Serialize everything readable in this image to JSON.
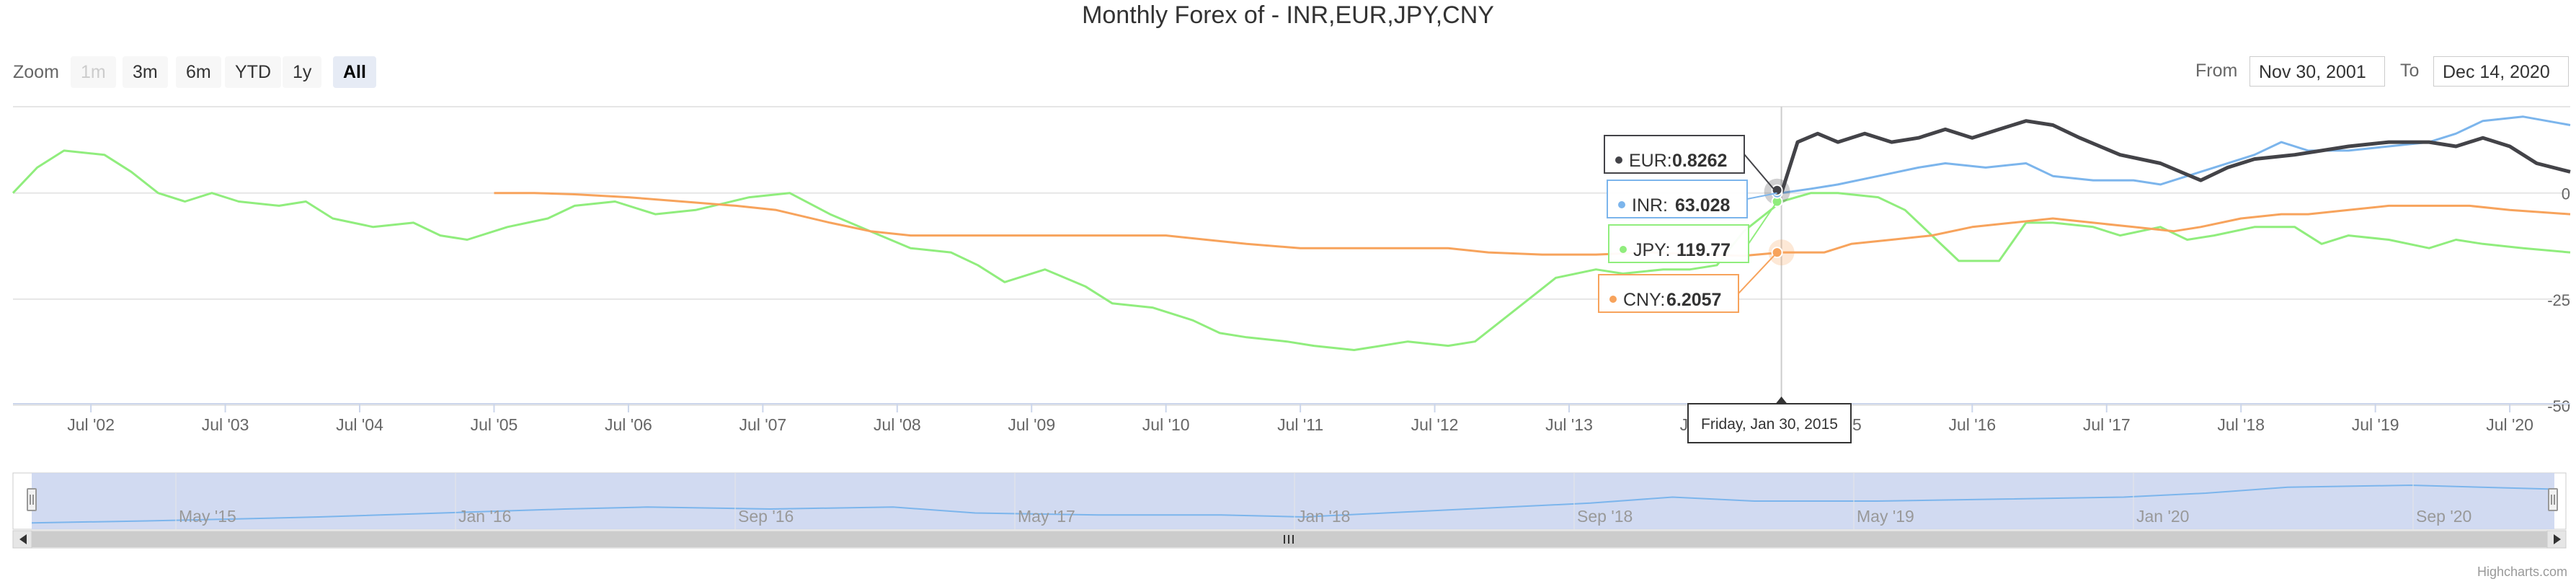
{
  "title": "Monthly Forex of - INR,EUR,JPY,CNY",
  "zoom": {
    "label": "Zoom",
    "buttons": [
      {
        "label": "1m",
        "state": "disabled"
      },
      {
        "label": "3m",
        "state": "normal"
      },
      {
        "label": "6m",
        "state": "normal"
      },
      {
        "label": "YTD",
        "state": "normal"
      },
      {
        "label": "1y",
        "state": "normal"
      },
      {
        "label": "All",
        "state": "active"
      }
    ]
  },
  "range": {
    "from_label": "From",
    "from_value": "Nov 30, 2001",
    "to_label": "To",
    "to_value": "Dec 14, 2020"
  },
  "credits": "Highcharts.com",
  "tooltip": {
    "date": "Friday, Jan 30, 2015",
    "items": [
      {
        "series": "EUR",
        "value": "0.8262"
      },
      {
        "series": "INR",
        "value": "63.028"
      },
      {
        "series": "JPY",
        "value": "119.77"
      },
      {
        "series": "CNY",
        "value": "6.2057"
      }
    ]
  },
  "chart_data": {
    "type": "line",
    "title": "Monthly Forex of - INR,EUR,JPY,CNY",
    "x_ticks": [
      "Jul '02",
      "Jul '03",
      "Jul '04",
      "Jul '05",
      "Jul '06",
      "Jul '07",
      "Jul '08",
      "Jul '09",
      "Jul '10",
      "Jul '11",
      "Jul '12",
      "Jul '13",
      "Jul '14",
      "Jul '15",
      "Jul '16",
      "Jul '17",
      "Jul '18",
      "Jul '19",
      "Jul '20"
    ],
    "y_ticks": [
      "0",
      "-25",
      "-50"
    ],
    "ylim": [
      -50,
      20
    ],
    "xlim": [
      2001.92,
      2020.95
    ],
    "y_axis_position": "right",
    "compare_mode": "percent change from first visible point",
    "grid": true,
    "crosshair_x": 2015.08,
    "navigator_ticks": [
      "May '15",
      "Jan '16",
      "Sep '16",
      "May '17",
      "Jan '18",
      "Sep '18",
      "May '19",
      "Jan '20",
      "Sep '20"
    ],
    "series": [
      {
        "name": "JPY",
        "color": "#90ed7d",
        "points": [
          [
            2001.92,
            0
          ],
          [
            2002.1,
            6
          ],
          [
            2002.3,
            10
          ],
          [
            2002.6,
            9
          ],
          [
            2002.8,
            5
          ],
          [
            2003.0,
            0
          ],
          [
            2003.2,
            -2
          ],
          [
            2003.4,
            0
          ],
          [
            2003.6,
            -2
          ],
          [
            2003.9,
            -3
          ],
          [
            2004.1,
            -2
          ],
          [
            2004.3,
            -6
          ],
          [
            2004.6,
            -8
          ],
          [
            2004.9,
            -7
          ],
          [
            2005.1,
            -10
          ],
          [
            2005.3,
            -11
          ],
          [
            2005.6,
            -8
          ],
          [
            2005.9,
            -6
          ],
          [
            2006.1,
            -3
          ],
          [
            2006.4,
            -2
          ],
          [
            2006.7,
            -5
          ],
          [
            2007.0,
            -4
          ],
          [
            2007.4,
            -1
          ],
          [
            2007.7,
            0
          ],
          [
            2008.0,
            -5
          ],
          [
            2008.3,
            -9
          ],
          [
            2008.6,
            -13
          ],
          [
            2008.9,
            -14
          ],
          [
            2009.1,
            -17
          ],
          [
            2009.3,
            -21
          ],
          [
            2009.6,
            -18
          ],
          [
            2009.9,
            -22
          ],
          [
            2010.1,
            -26
          ],
          [
            2010.4,
            -27
          ],
          [
            2010.7,
            -30
          ],
          [
            2010.9,
            -33
          ],
          [
            2011.1,
            -34
          ],
          [
            2011.4,
            -35
          ],
          [
            2011.6,
            -36
          ],
          [
            2011.9,
            -37
          ],
          [
            2012.1,
            -36
          ],
          [
            2012.3,
            -35
          ],
          [
            2012.6,
            -36
          ],
          [
            2012.8,
            -35
          ],
          [
            2013.0,
            -30
          ],
          [
            2013.2,
            -25
          ],
          [
            2013.4,
            -20
          ],
          [
            2013.7,
            -18
          ],
          [
            2013.9,
            -19
          ],
          [
            2014.2,
            -18
          ],
          [
            2014.4,
            -18
          ],
          [
            2014.6,
            -17
          ],
          [
            2014.8,
            -9
          ],
          [
            2015.08,
            -2
          ],
          [
            2015.3,
            0
          ],
          [
            2015.5,
            0
          ],
          [
            2015.8,
            -1
          ],
          [
            2016.0,
            -4
          ],
          [
            2016.2,
            -10
          ],
          [
            2016.4,
            -16
          ],
          [
            2016.7,
            -16
          ],
          [
            2016.9,
            -7
          ],
          [
            2017.1,
            -7
          ],
          [
            2017.4,
            -8
          ],
          [
            2017.6,
            -10
          ],
          [
            2017.9,
            -8
          ],
          [
            2018.1,
            -11
          ],
          [
            2018.3,
            -10
          ],
          [
            2018.6,
            -8
          ],
          [
            2018.9,
            -8
          ],
          [
            2019.1,
            -12
          ],
          [
            2019.3,
            -10
          ],
          [
            2019.6,
            -11
          ],
          [
            2019.9,
            -13
          ],
          [
            2020.1,
            -11
          ],
          [
            2020.3,
            -12
          ],
          [
            2020.6,
            -13
          ],
          [
            2020.95,
            -14
          ]
        ]
      },
      {
        "name": "CNY",
        "color": "#f7a35c",
        "points": [
          [
            2005.5,
            0
          ],
          [
            2005.8,
            0
          ],
          [
            2006.1,
            -0.3
          ],
          [
            2006.5,
            -1
          ],
          [
            2006.9,
            -2
          ],
          [
            2007.3,
            -3
          ],
          [
            2007.6,
            -4
          ],
          [
            2008.0,
            -7
          ],
          [
            2008.3,
            -9
          ],
          [
            2008.6,
            -10
          ],
          [
            2009.0,
            -10
          ],
          [
            2009.5,
            -10
          ],
          [
            2010.0,
            -10
          ],
          [
            2010.5,
            -10
          ],
          [
            2010.8,
            -11
          ],
          [
            2011.1,
            -12
          ],
          [
            2011.5,
            -13
          ],
          [
            2011.9,
            -13
          ],
          [
            2012.2,
            -13
          ],
          [
            2012.6,
            -13
          ],
          [
            2012.9,
            -14
          ],
          [
            2013.3,
            -14.5
          ],
          [
            2013.7,
            -14.5
          ],
          [
            2014.1,
            -14
          ],
          [
            2014.5,
            -14.5
          ],
          [
            2014.8,
            -14.8
          ],
          [
            2015.08,
            -14
          ],
          [
            2015.4,
            -14
          ],
          [
            2015.6,
            -12
          ],
          [
            2015.9,
            -11
          ],
          [
            2016.2,
            -10
          ],
          [
            2016.5,
            -8
          ],
          [
            2016.8,
            -7
          ],
          [
            2017.1,
            -6
          ],
          [
            2017.4,
            -7
          ],
          [
            2017.7,
            -8
          ],
          [
            2018.0,
            -9
          ],
          [
            2018.2,
            -8
          ],
          [
            2018.5,
            -6
          ],
          [
            2018.8,
            -5
          ],
          [
            2019.0,
            -5
          ],
          [
            2019.3,
            -4
          ],
          [
            2019.6,
            -3
          ],
          [
            2019.9,
            -3
          ],
          [
            2020.2,
            -3
          ],
          [
            2020.5,
            -4
          ],
          [
            2020.95,
            -5
          ]
        ]
      },
      {
        "name": "INR",
        "color": "#7cb5ec",
        "points": [
          [
            2015.08,
            0
          ],
          [
            2015.3,
            1
          ],
          [
            2015.5,
            2
          ],
          [
            2015.8,
            4
          ],
          [
            2016.1,
            6
          ],
          [
            2016.3,
            7
          ],
          [
            2016.6,
            6
          ],
          [
            2016.9,
            7
          ],
          [
            2017.1,
            4
          ],
          [
            2017.4,
            3
          ],
          [
            2017.7,
            3
          ],
          [
            2017.9,
            2
          ],
          [
            2018.1,
            4
          ],
          [
            2018.3,
            6
          ],
          [
            2018.6,
            9
          ],
          [
            2018.8,
            12
          ],
          [
            2019.0,
            10
          ],
          [
            2019.3,
            10
          ],
          [
            2019.6,
            11
          ],
          [
            2019.9,
            12
          ],
          [
            2020.1,
            14
          ],
          [
            2020.3,
            17
          ],
          [
            2020.6,
            18
          ],
          [
            2020.95,
            16
          ]
        ]
      },
      {
        "name": "EUR",
        "color": "#434348",
        "points": [
          [
            2015.08,
            0
          ],
          [
            2015.2,
            12
          ],
          [
            2015.35,
            14
          ],
          [
            2015.5,
            12
          ],
          [
            2015.7,
            14
          ],
          [
            2015.9,
            12
          ],
          [
            2016.1,
            13
          ],
          [
            2016.3,
            15
          ],
          [
            2016.5,
            13
          ],
          [
            2016.7,
            15
          ],
          [
            2016.9,
            17
          ],
          [
            2017.1,
            16
          ],
          [
            2017.3,
            13
          ],
          [
            2017.6,
            9
          ],
          [
            2017.9,
            7
          ],
          [
            2018.2,
            3
          ],
          [
            2018.4,
            6
          ],
          [
            2018.6,
            8
          ],
          [
            2018.9,
            9
          ],
          [
            2019.1,
            10
          ],
          [
            2019.3,
            11
          ],
          [
            2019.6,
            12
          ],
          [
            2019.9,
            12
          ],
          [
            2020.1,
            11
          ],
          [
            2020.3,
            13
          ],
          [
            2020.5,
            11
          ],
          [
            2020.7,
            7
          ],
          [
            2020.95,
            5
          ]
        ]
      }
    ]
  }
}
